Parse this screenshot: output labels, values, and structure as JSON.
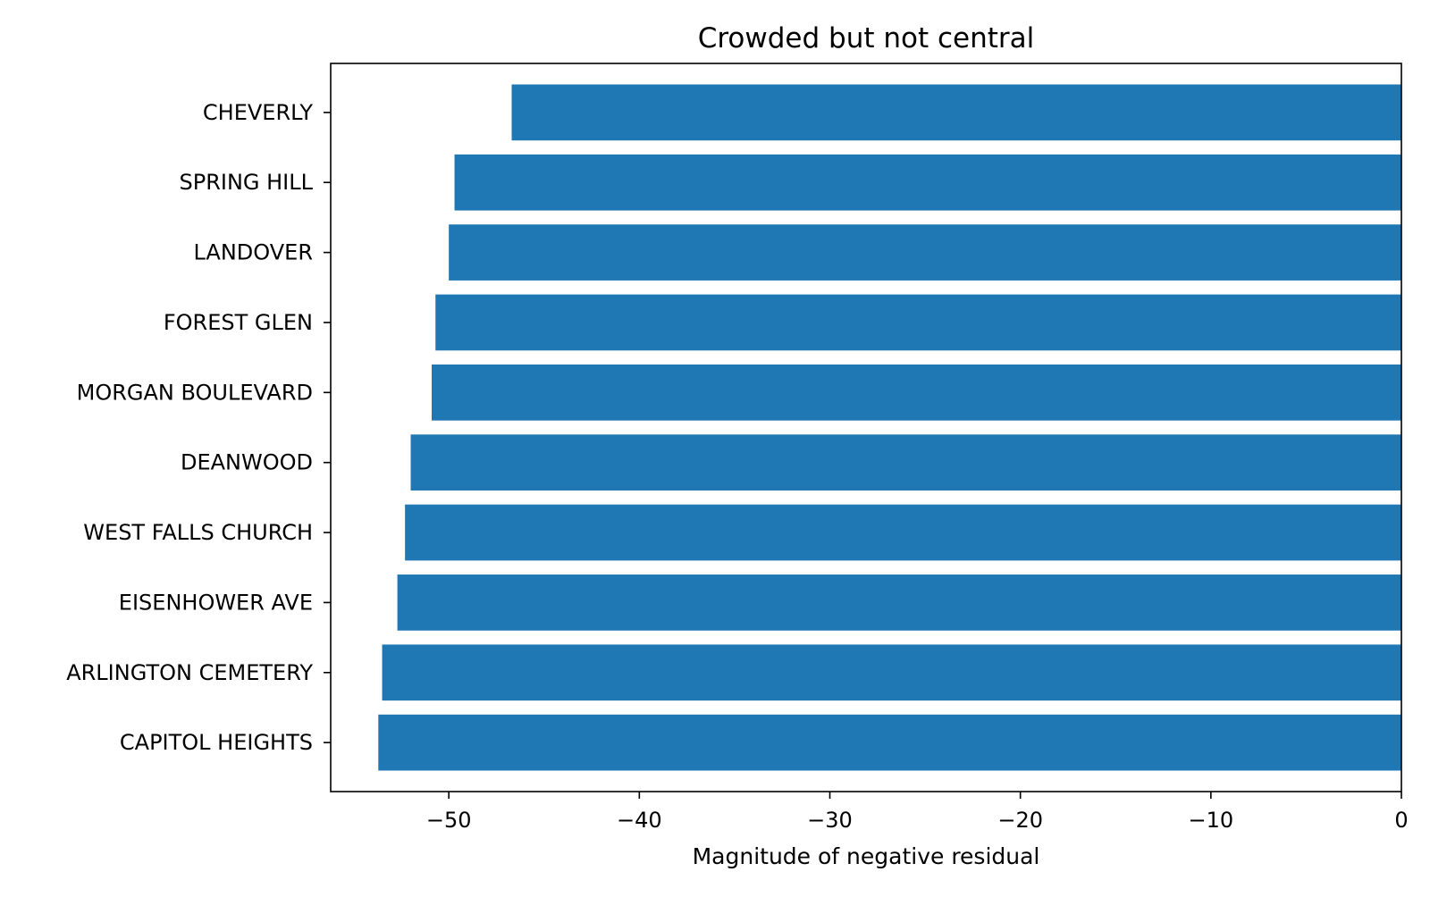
{
  "chart_data": {
    "type": "bar",
    "orientation": "horizontal",
    "title": "Crowded but not central",
    "xlabel": "Magnitude of negative residual",
    "ylabel": "",
    "categories": [
      "CAPITOL HEIGHTS",
      "ARLINGTON CEMETERY",
      "EISENHOWER AVE",
      "WEST FALLS CHURCH",
      "DEANWOOD",
      "MORGAN BOULEVARD",
      "FOREST GLEN",
      "LANDOVER",
      "SPRING HILL",
      "CHEVERLY"
    ],
    "values": [
      -53.7,
      -53.5,
      -52.7,
      -52.3,
      -52.0,
      -50.9,
      -50.7,
      -50.0,
      -49.7,
      -46.7
    ],
    "xlim": [
      -56.2,
      0
    ],
    "xticks": [
      -50,
      -40,
      -30,
      -20,
      -10,
      0
    ],
    "xtick_labels": [
      "−50",
      "−40",
      "−30",
      "−20",
      "−10",
      "0"
    ],
    "bar_color": "#1f77b4",
    "grid": false,
    "legend": "none"
  }
}
